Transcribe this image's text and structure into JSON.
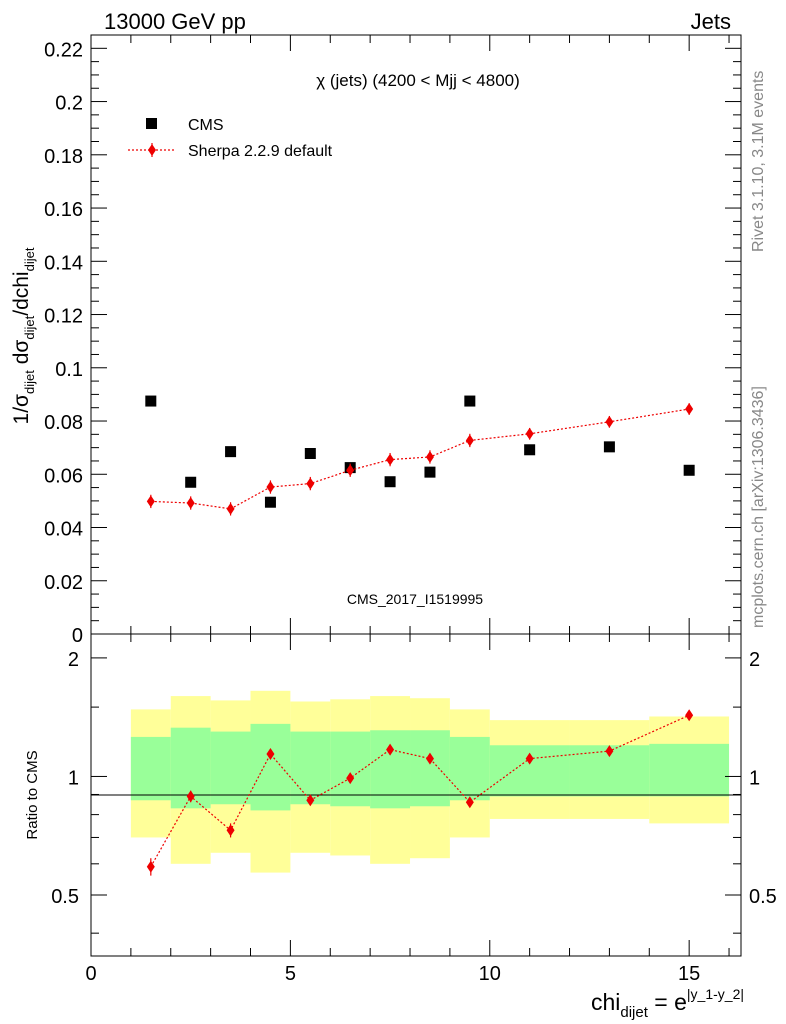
{
  "header": {
    "left": "13000 GeV pp",
    "right": "Jets"
  },
  "side_text": {
    "rivet": "Rivet 3.1.10,  3.1M events",
    "mcplots": "mcplots.cern.ch [arXiv:1306.3436]"
  },
  "colors": {
    "data": "#000000",
    "mc": "#ee0000",
    "band_outer": "#ffff99",
    "band_inner": "#99ff99",
    "watermark": "#999999"
  },
  "chart_data": [
    {
      "type": "scatter",
      "title": "χ (jets) (4200 < Mjj < 4800)",
      "ylabel": "1/σdijet dσdijet/dchidijet",
      "ylim": [
        0,
        0.225
      ],
      "xlim": [
        0,
        16.3
      ],
      "watermark": "CMS_2017_I1519995",
      "legend_position": "top-left",
      "yticks": [
        "0",
        "0.02",
        "0.04",
        "0.06",
        "0.08",
        "0.1",
        "0.12",
        "0.14",
        "0.16",
        "0.18",
        "0.2",
        "0.22"
      ],
      "series": [
        {
          "name": "CMS",
          "x": [
            1.5,
            2.5,
            3.5,
            4.5,
            5.5,
            6.5,
            7.5,
            8.5,
            9.5,
            11,
            13,
            15
          ],
          "y": [
            0.0875,
            0.057,
            0.0685,
            0.0495,
            0.0678,
            0.0625,
            0.0572,
            0.0608,
            0.0875,
            0.0692,
            0.0703,
            0.0615
          ]
        },
        {
          "name": "Sherpa 2.2.9 default",
          "x": [
            1.5,
            2.5,
            3.5,
            4.5,
            5.5,
            6.5,
            7.5,
            8.5,
            9.5,
            11,
            13,
            15
          ],
          "y": [
            0.0498,
            0.0492,
            0.047,
            0.0552,
            0.0565,
            0.0615,
            0.0655,
            0.0665,
            0.0727,
            0.0752,
            0.0797,
            0.0845
          ],
          "yerr": [
            0.0025,
            0.0025,
            0.0025,
            0.0025,
            0.0025,
            0.0025,
            0.0025,
            0.0025,
            0.0025,
            0.0022,
            0.0022,
            0.0022
          ]
        }
      ]
    },
    {
      "type": "line",
      "ylabel": "Ratio to CMS",
      "xlabel": "chidijet = e|y_1-y_2|",
      "ylim": [
        0.35,
        2.3
      ],
      "xlim": [
        0,
        16.3
      ],
      "xticks": [
        "0",
        "5",
        "10",
        "15"
      ],
      "yticks": [
        "0.5",
        "1",
        "2"
      ],
      "bands": {
        "edges": [
          1,
          2,
          3,
          4,
          5,
          6,
          7,
          8,
          9,
          10,
          12,
          14,
          16
        ],
        "outer_lo": [
          0.7,
          0.6,
          0.64,
          0.57,
          0.64,
          0.63,
          0.6,
          0.62,
          0.7,
          0.78,
          0.78,
          0.76
        ],
        "outer_hi": [
          1.48,
          1.6,
          1.56,
          1.65,
          1.55,
          1.57,
          1.6,
          1.58,
          1.48,
          1.39,
          1.39,
          1.42
        ],
        "inner_lo": [
          0.87,
          0.83,
          0.85,
          0.82,
          0.85,
          0.84,
          0.83,
          0.84,
          0.87,
          0.89,
          0.89,
          0.89
        ],
        "inner_hi": [
          1.26,
          1.33,
          1.3,
          1.36,
          1.3,
          1.3,
          1.31,
          1.31,
          1.26,
          1.2,
          1.2,
          1.21
        ]
      },
      "series": [
        {
          "name": "Sherpa 2.2.9 default",
          "x": [
            1.5,
            2.5,
            3.5,
            4.5,
            5.5,
            6.5,
            7.5,
            8.5,
            9.5,
            11,
            13,
            15
          ],
          "y": [
            0.59,
            0.89,
            0.73,
            1.14,
            0.87,
            0.99,
            1.17,
            1.11,
            0.86,
            1.11,
            1.16,
            1.43
          ],
          "yerr": [
            0.03,
            0.03,
            0.03,
            0.03,
            0.025,
            0.025,
            0.03,
            0.03,
            0.02,
            0.025,
            0.02,
            0.025
          ]
        }
      ]
    }
  ]
}
